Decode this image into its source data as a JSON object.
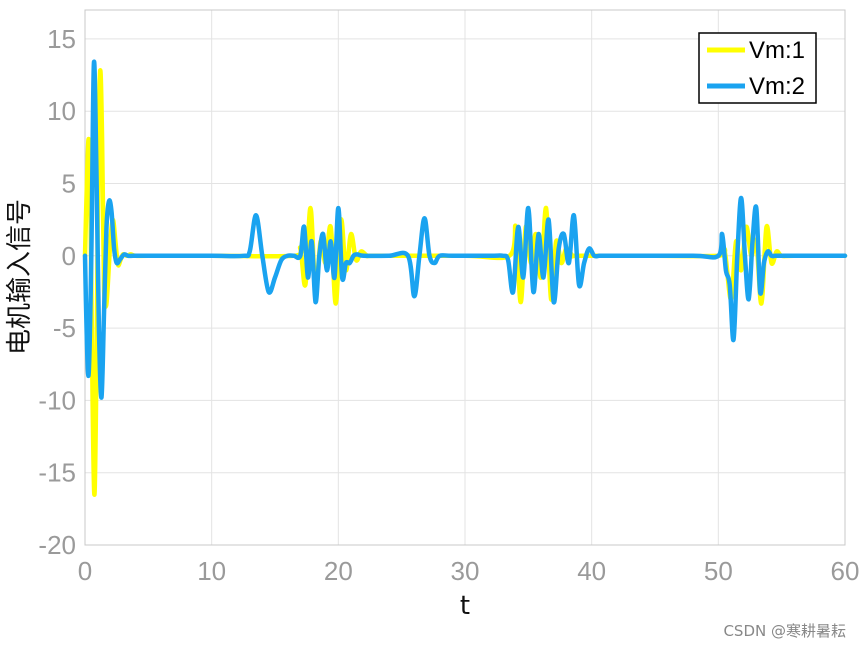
{
  "chart_data": {
    "type": "line",
    "xlabel": "t",
    "ylabel": "电机输入信号",
    "xlim": [
      0,
      60
    ],
    "ylim": [
      -20,
      17
    ],
    "xticks": [
      0,
      10,
      20,
      30,
      40,
      50,
      60
    ],
    "yticks": [
      -20,
      -15,
      -10,
      -5,
      0,
      5,
      10,
      15
    ],
    "grid": true,
    "legend_position": "top-right",
    "series": [
      {
        "name": "Vm:1",
        "color": "#ffff00",
        "x": [
          0,
          0.15,
          0.3,
          0.45,
          0.6,
          0.75,
          0.9,
          1.05,
          1.2,
          1.35,
          1.5,
          1.65,
          1.8,
          2.0,
          2.2,
          2.4,
          2.6,
          2.8,
          3.0,
          3.3,
          3.6,
          4.0,
          5.0,
          10.0,
          16.5,
          17.0,
          17.4,
          17.8,
          18.2,
          18.6,
          19.0,
          19.4,
          19.8,
          20.2,
          20.6,
          21.0,
          21.4,
          21.8,
          22.3,
          23.0,
          30.0,
          33.5,
          34.0,
          34.4,
          34.8,
          35.2,
          35.6,
          36.0,
          36.4,
          36.8,
          37.2,
          37.6,
          38.0,
          38.5,
          39.0,
          45.0,
          50.0,
          50.5,
          51.0,
          51.4,
          51.8,
          52.2,
          52.6,
          53.0,
          53.4,
          53.8,
          54.2,
          54.6,
          55.0,
          56.0,
          60.0
        ],
        "y": [
          0,
          5,
          8,
          2,
          -10,
          -16.5,
          -8,
          6,
          12.8,
          8,
          -2,
          -3.5,
          -2,
          1,
          2.5,
          1,
          -0.6,
          -0.3,
          0.1,
          0,
          0.1,
          0,
          0,
          0,
          0,
          0.5,
          -2,
          3.3,
          -2.5,
          1,
          -0.5,
          2,
          -3.3,
          2.5,
          -1,
          1.5,
          -0.3,
          0.3,
          0,
          0,
          0,
          0,
          2,
          -3.2,
          2,
          -0.5,
          1.5,
          -1.5,
          3.3,
          -3,
          1,
          -0.5,
          0.5,
          0,
          0,
          0,
          0,
          0.3,
          -3,
          1,
          -1,
          2,
          0,
          1,
          -3.3,
          2,
          -0.5,
          0.3,
          0,
          0,
          0
        ]
      },
      {
        "name": "Vm:2",
        "color": "#1aa3f0",
        "x": [
          0,
          0.15,
          0.3,
          0.5,
          0.7,
          0.9,
          1.1,
          1.3,
          1.5,
          1.7,
          1.9,
          2.1,
          2.3,
          2.5,
          2.8,
          3.1,
          3.4,
          3.8,
          4.5,
          6.0,
          10.0,
          12.5,
          13.0,
          13.5,
          14.0,
          14.5,
          15.0,
          15.5,
          16.0,
          16.5,
          17.0,
          17.3,
          17.6,
          17.9,
          18.2,
          18.5,
          18.8,
          19.1,
          19.4,
          19.7,
          20.0,
          20.3,
          20.6,
          20.9,
          21.2,
          21.5,
          22.0,
          24.0,
          25.5,
          26.0,
          26.4,
          26.8,
          27.2,
          27.6,
          28.0,
          29.0,
          32.0,
          33.0,
          33.4,
          33.8,
          34.2,
          34.6,
          35.0,
          35.4,
          35.8,
          36.2,
          36.6,
          37.0,
          37.4,
          37.8,
          38.2,
          38.6,
          39.0,
          39.4,
          39.8,
          40.2,
          40.6,
          41.0,
          42.0,
          48.0,
          50.0,
          50.3,
          50.6,
          50.9,
          51.2,
          51.5,
          51.8,
          52.1,
          52.4,
          52.7,
          53.0,
          53.3,
          53.6,
          53.9,
          54.2,
          54.5,
          55.0,
          56.0,
          60.0
        ],
        "y": [
          0,
          -6,
          -8,
          0,
          13.3,
          6,
          -5,
          -9.8,
          -4,
          2,
          3.8,
          3,
          0.5,
          -0.5,
          -0.2,
          0.1,
          0,
          0,
          0,
          0,
          0,
          0,
          0.3,
          2.8,
          0,
          -2.5,
          -1.5,
          -0.3,
          0,
          0,
          0,
          2,
          -1.5,
          1,
          -3.2,
          0,
          1.5,
          -1,
          1,
          -1.5,
          3.3,
          -1.5,
          -0.5,
          -0.5,
          0,
          0.1,
          0,
          0,
          0,
          -2.8,
          0,
          2.6,
          0,
          -0.5,
          0,
          0,
          0,
          0,
          -0.3,
          -2.5,
          2,
          -1.5,
          3.3,
          -2.5,
          1.5,
          -1.5,
          2.5,
          -3.2,
          0.5,
          1.5,
          -0.5,
          2.8,
          -2,
          -0.5,
          0.5,
          0,
          0,
          0,
          0,
          0,
          0,
          1.5,
          -1,
          -2,
          -5.8,
          0,
          4,
          0,
          -3,
          1,
          3.3,
          -2.5,
          -0.5,
          0.3,
          0,
          0,
          0,
          0,
          0
        ]
      }
    ]
  },
  "watermark": "CSDN @寒耕暑耘"
}
